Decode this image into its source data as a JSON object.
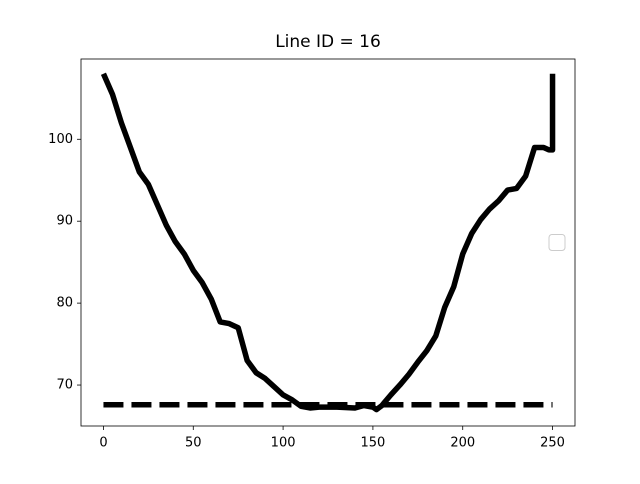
{
  "chart_data": {
    "type": "line",
    "title": "Line ID = 16",
    "series": [
      {
        "color": "#000000",
        "linestyle": "solid",
        "x": [
          0,
          5,
          10,
          15,
          20,
          25,
          30,
          35,
          40,
          45,
          50,
          55,
          60,
          65,
          70,
          75,
          80,
          85,
          90,
          95,
          100,
          105,
          110,
          115,
          120,
          130,
          140,
          145,
          150,
          152,
          155,
          160,
          165,
          170,
          175,
          180,
          185,
          190,
          195,
          200,
          205,
          210,
          215,
          220,
          225,
          230,
          235,
          240,
          245,
          248,
          250,
          250
        ],
        "values": [
          108,
          105.5,
          102,
          99,
          96,
          94.5,
          92,
          89.5,
          87.5,
          86,
          84,
          82.5,
          80.5,
          77.7,
          77.5,
          77,
          73,
          71.5,
          70.8,
          69.8,
          68.8,
          68.2,
          67.4,
          67.2,
          67.3,
          67.3,
          67.2,
          67.5,
          67.3,
          67,
          67.5,
          68.8,
          70,
          71.3,
          72.8,
          74.2,
          76,
          79.5,
          82,
          86,
          88.5,
          90.2,
          91.5,
          92.5,
          93.8,
          94,
          95.5,
          99,
          99,
          98.7,
          98.7,
          108
        ]
      },
      {
        "color": "#000000",
        "linestyle": "dashed",
        "x": [
          0,
          250
        ],
        "values": [
          67.6,
          67.6
        ]
      }
    ],
    "xlim": [
      -12.5,
      262.5
    ],
    "xticks": [
      0,
      50,
      100,
      150,
      200,
      250
    ],
    "ylim": [
      65,
      109.8
    ],
    "yticks": [
      70,
      80,
      90,
      100
    ],
    "grid": false,
    "legend": "center right"
  }
}
